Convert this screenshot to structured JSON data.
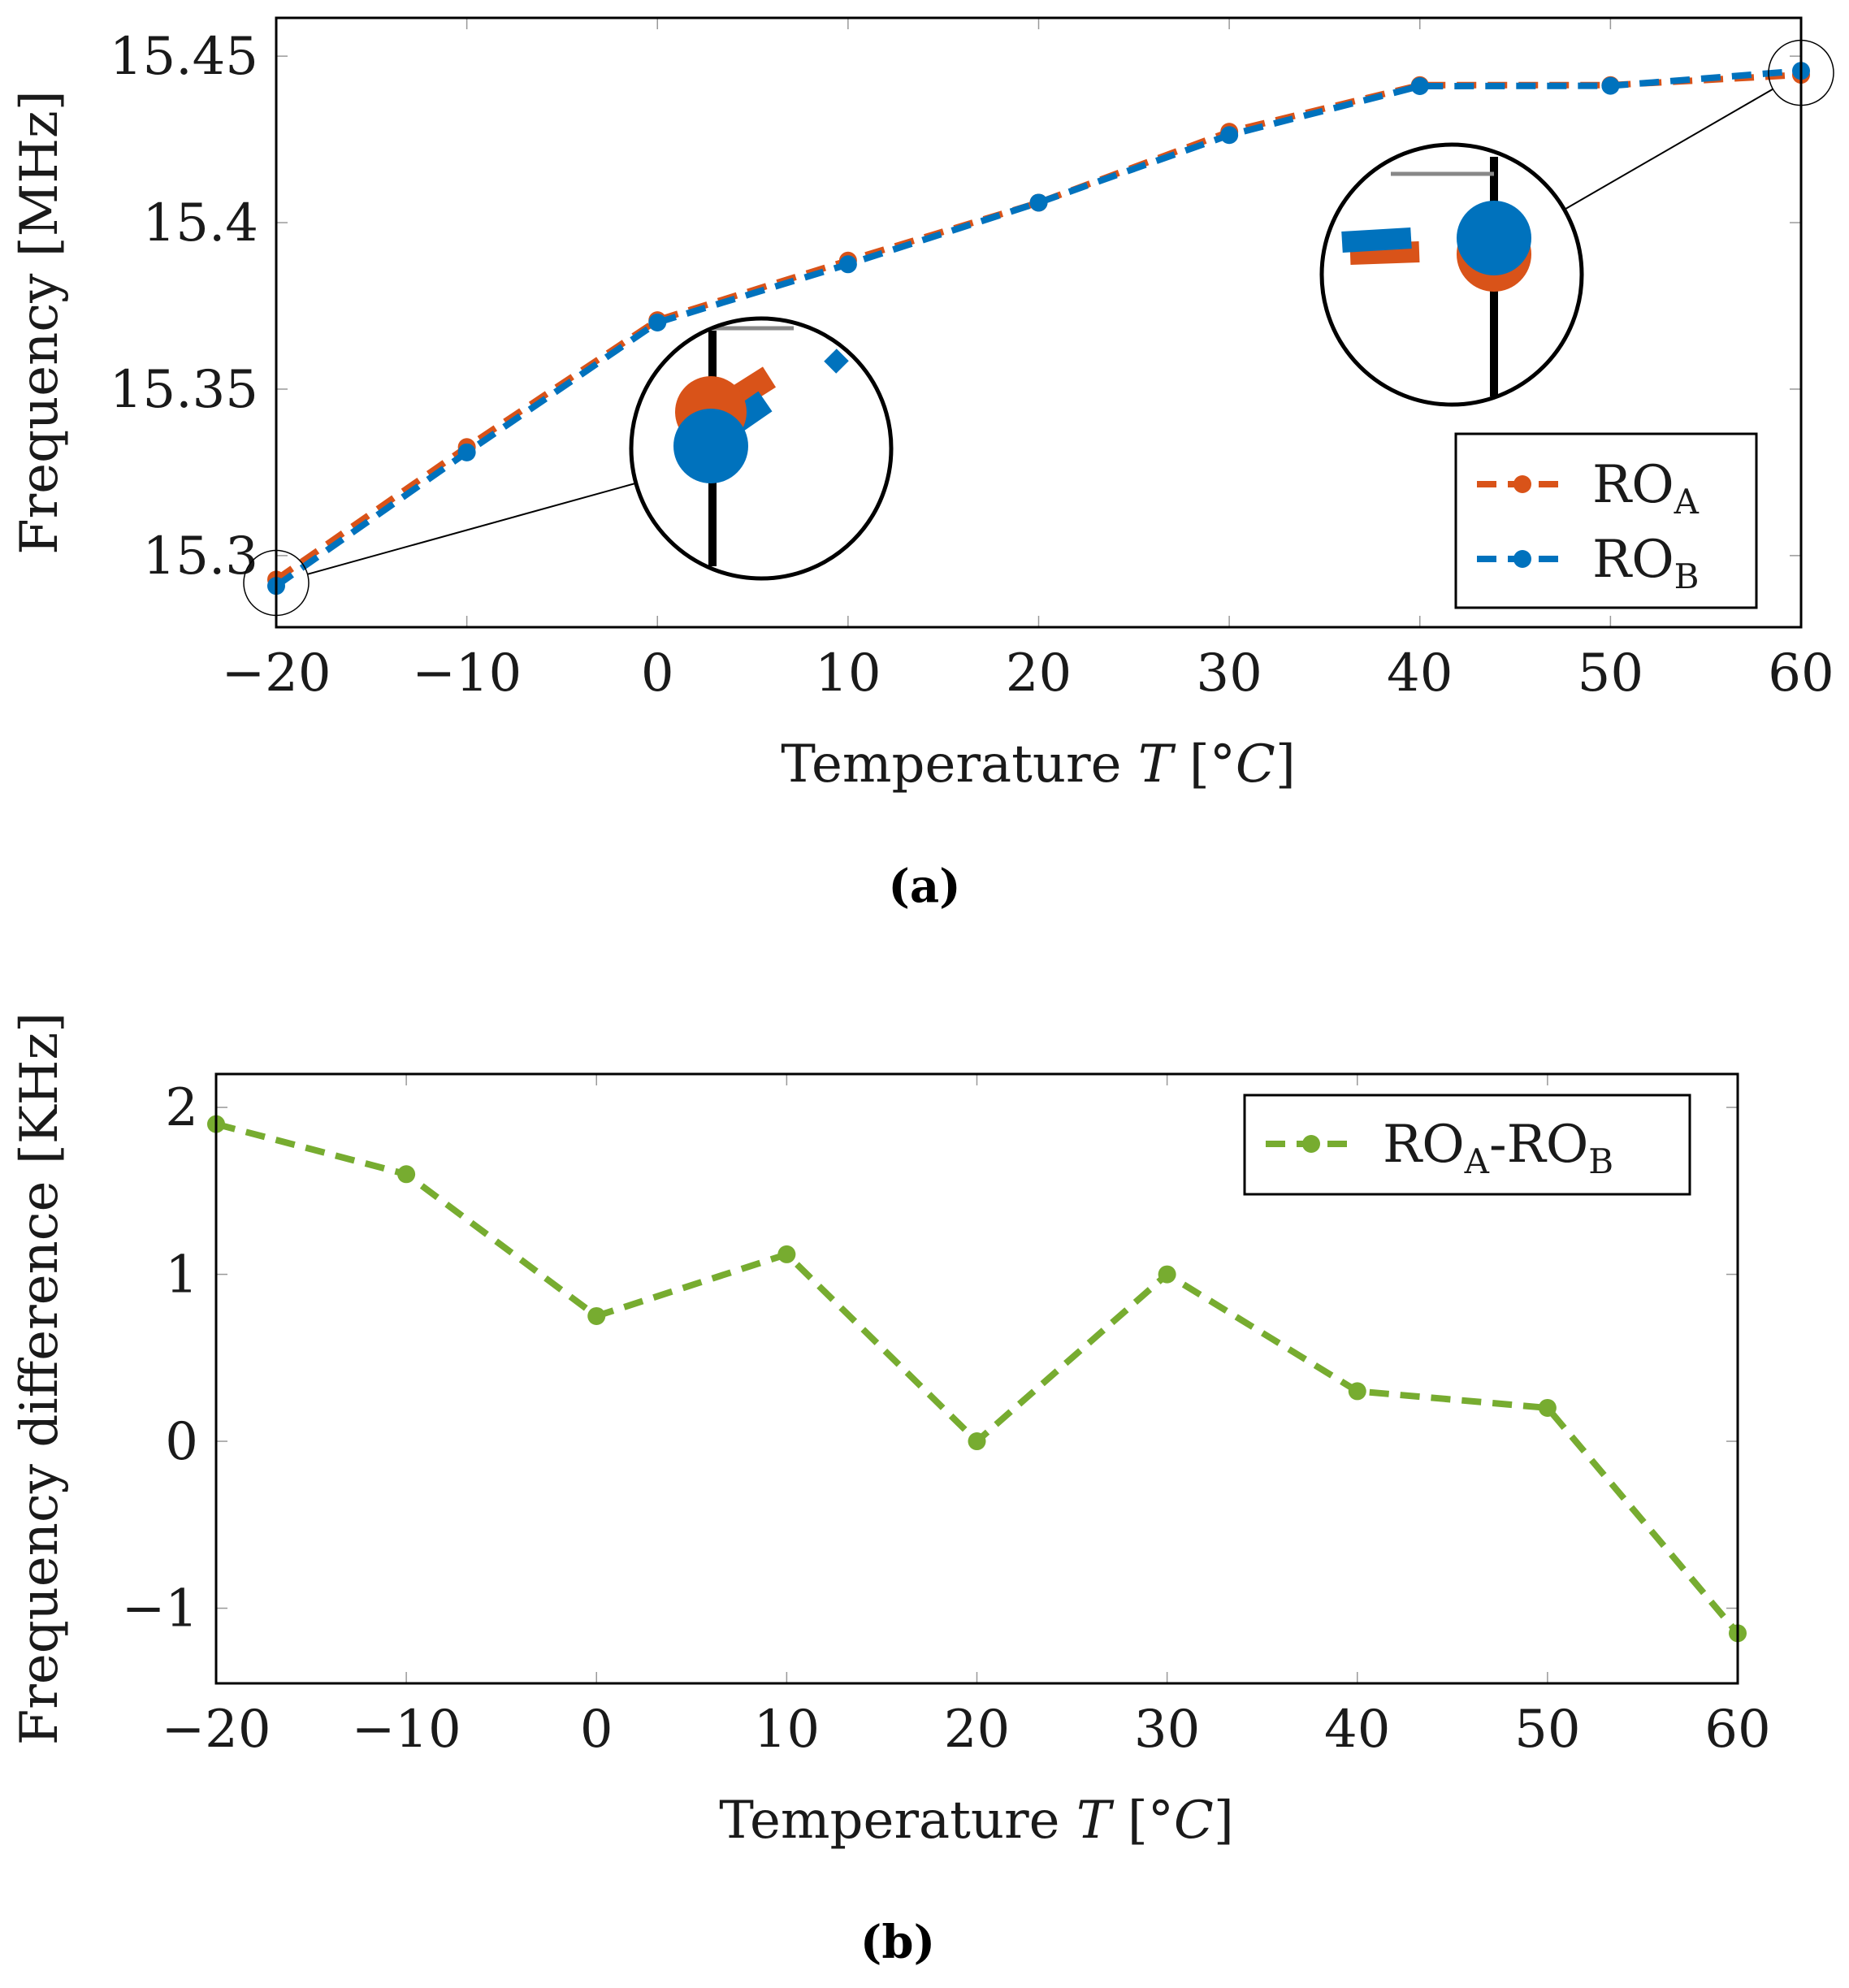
{
  "chart_data": [
    {
      "id": "a",
      "type": "line",
      "caption": "(a)",
      "xlabel": "Temperature",
      "xlabel_var": "T",
      "xlabel_unit_open": "[°",
      "xlabel_unit_var": "C",
      "xlabel_unit_close": "]",
      "ylabel": "Frequency [MHz]",
      "xlim": [
        -20,
        60
      ],
      "ylim": [
        15.2785,
        15.4615
      ],
      "x": [
        -20,
        -10,
        0,
        10,
        20,
        30,
        40,
        50,
        60
      ],
      "xticks": [
        -20,
        -10,
        0,
        10,
        20,
        30,
        40,
        50,
        60
      ],
      "xtick_labels": [
        "−20",
        "−10",
        "0",
        "10",
        "20",
        "30",
        "40",
        "50",
        "60"
      ],
      "yticks": [
        15.3,
        15.35,
        15.4,
        15.45
      ],
      "ytick_labels": [
        "15.3",
        "15.35",
        "15.4",
        "15.45"
      ],
      "series": [
        {
          "name": "RO",
          "subscript": "A",
          "color": "#d95319",
          "values": [
            15.2928,
            15.3326,
            15.3707,
            15.3886,
            15.406,
            15.4273,
            15.4413,
            15.4413,
            15.4444
          ]
        },
        {
          "name": "RO",
          "subscript": "B",
          "color": "#0072bd",
          "values": [
            15.2909,
            15.331,
            15.37,
            15.3875,
            15.406,
            15.4263,
            15.441,
            15.4411,
            15.4456
          ]
        }
      ],
      "legend_position": "bottom-right",
      "insets": [
        {
          "target_x": -20,
          "target_y": 15.2918,
          "side": "left"
        },
        {
          "target_x": 60,
          "target_y": 15.445,
          "side": "right"
        }
      ]
    },
    {
      "id": "b",
      "type": "line",
      "caption": "(b)",
      "xlabel": "Temperature",
      "xlabel_var": "T",
      "xlabel_unit_open": "[°",
      "xlabel_unit_var": "C",
      "xlabel_unit_close": "]",
      "ylabel": "Frequency difference [KHz]",
      "xlim": [
        -20,
        60
      ],
      "ylim": [
        -1.45,
        2.2
      ],
      "x": [
        -20,
        -10,
        0,
        10,
        20,
        30,
        40,
        50,
        60
      ],
      "xticks": [
        -20,
        -10,
        0,
        10,
        20,
        30,
        40,
        50,
        60
      ],
      "xtick_labels": [
        "−20",
        "−10",
        "0",
        "10",
        "20",
        "30",
        "40",
        "50",
        "60"
      ],
      "yticks": [
        -1,
        0,
        1,
        2
      ],
      "ytick_labels": [
        "−1",
        "0",
        "1",
        "2"
      ],
      "series": [
        {
          "name": "RO",
          "subscript": "A",
          "name2": "-RO",
          "subscript2": "B",
          "color": "#77ac30",
          "values": [
            1.9,
            1.6,
            0.75,
            1.12,
            0.0,
            1.0,
            0.3,
            0.2,
            -1.15
          ]
        }
      ],
      "legend_position": "top-right"
    }
  ]
}
